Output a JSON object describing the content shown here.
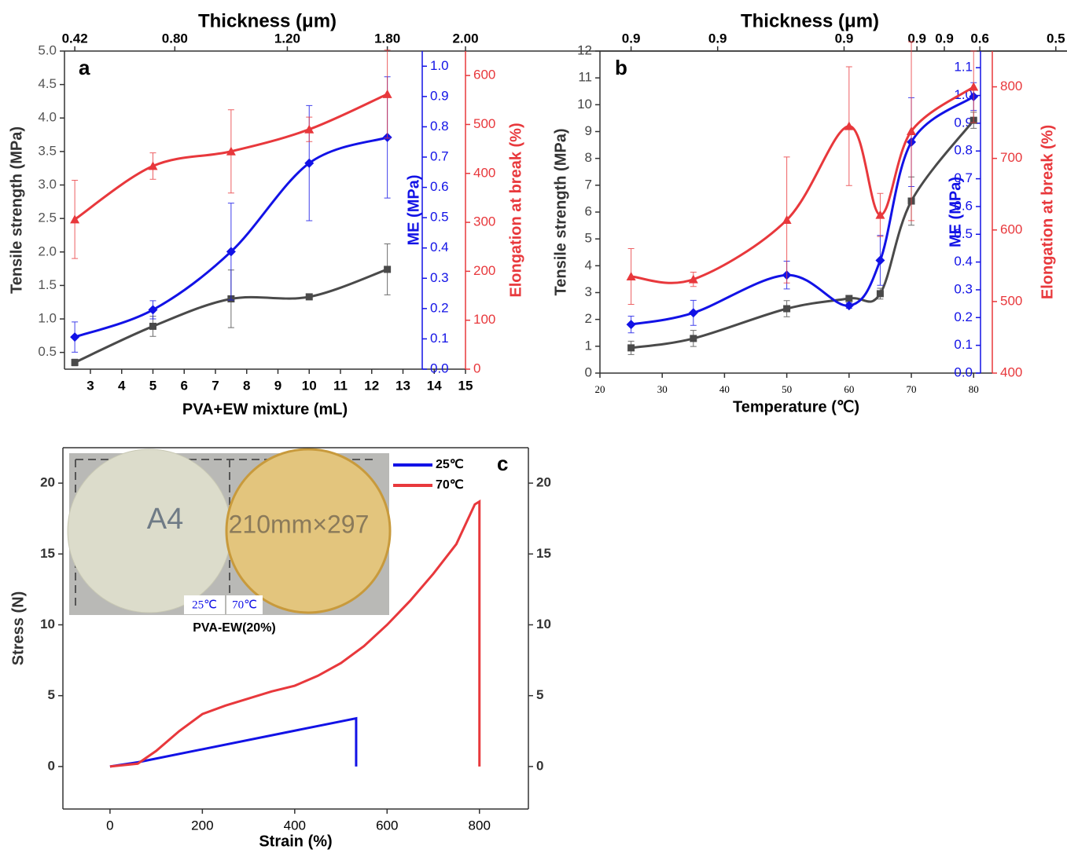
{
  "chart_data": [
    {
      "type": "line",
      "label": "a",
      "smooth": true,
      "xlabel": "PVA+EW mixture (mL)",
      "x2label": "Thickness (μm)",
      "ylabel": "Tensile strength (MPa)",
      "y2label": "ME (MPa)",
      "y3label": "Elongation at break (%)",
      "xlim": [
        2.17,
        15
      ],
      "xticks": [
        3,
        4,
        5,
        6,
        7,
        8,
        9,
        10,
        11,
        12,
        13,
        14,
        15
      ],
      "x2ticks": [
        {
          "value": 2.5,
          "label": "0.42"
        },
        {
          "value": 5.7,
          "label": "0.80"
        },
        {
          "value": 9.3,
          "label": "1.20"
        },
        {
          "value": 12.5,
          "label": "1.80"
        },
        {
          "value": 15,
          "label": "2.00"
        }
      ],
      "ylim": [
        0.25,
        5.0
      ],
      "yticks": [
        0.5,
        {
          "value": 1,
          "label": "1.0"
        },
        1.5,
        {
          "value": 2,
          "label": "2.0"
        },
        2.5,
        {
          "value": 3,
          "label": "3.0"
        },
        3.5,
        {
          "value": 4,
          "label": "4.0"
        },
        4.5,
        {
          "value": 5,
          "label": "5.0"
        }
      ],
      "y2lim": [
        0,
        1.05
      ],
      "y2ticks": [
        {
          "value": 0,
          "label": "0.0"
        },
        0.1,
        0.2,
        0.3,
        0.4,
        0.5,
        0.6,
        0.7,
        0.8,
        0.9,
        {
          "value": 1,
          "label": "1.0"
        }
      ],
      "y3lim": [
        0,
        650
      ],
      "y3ticks": [
        0,
        100,
        200,
        300,
        400,
        500,
        600
      ],
      "x": [
        2.5,
        5,
        7.5,
        10,
        12.5
      ],
      "series": [
        {
          "color": "#4a4a4a",
          "marker": "square",
          "values": [
            0.35,
            0.89,
            1.3,
            1.33,
            1.74
          ],
          "errors": [
            0.05,
            0.15,
            0.43,
            0.03,
            0.38
          ]
        },
        {
          "color": "#1212e6",
          "marker": "diamond",
          "axis": "y2",
          "values": [
            0.106,
            0.196,
            0.388,
            0.68,
            0.765
          ],
          "errors": [
            0.05,
            0.03,
            0.16,
            0.19,
            0.2
          ]
        },
        {
          "color": "#e8383c",
          "marker": "triangle",
          "axis": "y3",
          "values": [
            306,
            415,
            445,
            490,
            562
          ],
          "errors": [
            80,
            27,
            85,
            25,
            90
          ]
        }
      ]
    },
    {
      "type": "line",
      "label": "b",
      "smooth": true,
      "xlabel": "Temperature (℃)",
      "x2label": "Thickness (μm)",
      "ylabel": "Tensile strength (MPa)",
      "y2label": "ME (MPa)",
      "y3label": "Elongation at break (%)",
      "xlim": [
        20,
        83
      ],
      "xticks": [
        20,
        30,
        40,
        50,
        60,
        70,
        80
      ],
      "x2ticks": [
        {
          "value": 25,
          "label": "0.9"
        },
        {
          "value": 38.9,
          "label": "0.9"
        },
        {
          "value": 59.2,
          "label": "0.9"
        },
        {
          "value": 70.9,
          "label": "0.9"
        },
        {
          "value": 75.3,
          "label": "0.9"
        },
        {
          "value": 81,
          "label": "0.6"
        },
        {
          "value": 93.2,
          "label": "0.5"
        }
      ],
      "ylim": [
        0,
        12
      ],
      "yticks": [
        0,
        1,
        2,
        3,
        4,
        5,
        6,
        7,
        8,
        9,
        10,
        11,
        12
      ],
      "y2lim": [
        0,
        1.16
      ],
      "y2ticks": [
        {
          "value": 0,
          "label": "0.0"
        },
        0.1,
        0.2,
        0.3,
        0.4,
        0.5,
        0.6,
        0.7,
        0.8,
        0.9,
        {
          "value": 1,
          "label": "1.0"
        },
        1.1
      ],
      "y3lim": [
        400,
        850
      ],
      "y3ticks": [
        400,
        500,
        600,
        700,
        800
      ],
      "x": [
        25,
        35,
        50,
        60,
        65,
        70,
        80
      ],
      "series": [
        {
          "color": "#4a4a4a",
          "marker": "square",
          "values": [
            0.94,
            1.29,
            2.4,
            2.78,
            2.96,
            6.41,
            9.42
          ],
          "errors": [
            0.25,
            0.3,
            0.3,
            0.1,
            0.2,
            0.9,
            0.3
          ]
        },
        {
          "color": "#1212e6",
          "marker": "diamond",
          "axis": "y2",
          "values": [
            0.175,
            0.217,
            0.353,
            0.243,
            0.406,
            0.832,
            0.996
          ],
          "errors": [
            0.03,
            0.045,
            0.05,
            0.01,
            0.09,
            0.16,
            0.05
          ]
        },
        {
          "color": "#e8383c",
          "marker": "triangle",
          "axis": "y3",
          "values": [
            535,
            531,
            614,
            745,
            621,
            738,
            800
          ],
          "errors": [
            39,
            10,
            88,
            83,
            30,
            125,
            50
          ]
        }
      ]
    },
    {
      "type": "line",
      "label": "c",
      "smooth": false,
      "mirror_y": true,
      "legend": "top-right",
      "xlabel": "Strain (%)",
      "ylabel": "Stress (N)",
      "xlim": [
        -102,
        906
      ],
      "xticks": [
        0,
        200,
        400,
        600,
        800
      ],
      "ylim": [
        -3,
        22.5
      ],
      "yticks": [
        0,
        5,
        10,
        15,
        20
      ],
      "series": [
        {
          "name": "25℃",
          "color": "#1212e6",
          "x": [
            0,
            60,
            533,
            533
          ],
          "values": [
            0,
            0.3,
            3.4,
            0
          ]
        },
        {
          "name": "70℃",
          "color": "#e8383c",
          "x": [
            0,
            60,
            100,
            150,
            200,
            250,
            300,
            350,
            400,
            450,
            500,
            550,
            600,
            650,
            700,
            750,
            790,
            800,
            800
          ],
          "values": [
            0,
            0.2,
            1.1,
            2.5,
            3.7,
            4.3,
            4.8,
            5.3,
            5.7,
            6.4,
            7.3,
            8.5,
            10,
            11.7,
            13.6,
            15.7,
            18.5,
            18.7,
            0
          ]
        }
      ],
      "inset": {
        "labels": [
          "25℃",
          "70℃"
        ],
        "caption": "PVA-EW(20%)",
        "photo_text": [
          "A4",
          "210mm×297"
        ]
      }
    }
  ]
}
